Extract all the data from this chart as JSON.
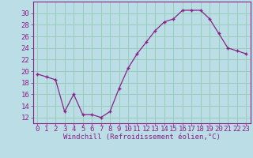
{
  "x": [
    0,
    1,
    2,
    3,
    4,
    5,
    6,
    7,
    8,
    9,
    10,
    11,
    12,
    13,
    14,
    15,
    16,
    17,
    18,
    19,
    20,
    21,
    22,
    23
  ],
  "y": [
    19.5,
    19.0,
    18.5,
    13.0,
    16.0,
    12.5,
    12.5,
    12.0,
    13.0,
    17.0,
    20.5,
    23.0,
    25.0,
    27.0,
    28.5,
    29.0,
    30.5,
    30.5,
    30.5,
    29.0,
    26.5,
    24.0,
    23.5,
    23.0
  ],
  "line_color": "#882288",
  "marker": "+",
  "bg_color": "#bbdde6",
  "grid_color": "#99ccbb",
  "xlabel": "Windchill (Refroidissement éolien,°C)",
  "xlim": [
    -0.5,
    23.5
  ],
  "ylim": [
    11,
    32
  ],
  "yticks": [
    12,
    14,
    16,
    18,
    20,
    22,
    24,
    26,
    28,
    30
  ],
  "xticks": [
    0,
    1,
    2,
    3,
    4,
    5,
    6,
    7,
    8,
    9,
    10,
    11,
    12,
    13,
    14,
    15,
    16,
    17,
    18,
    19,
    20,
    21,
    22,
    23
  ],
  "tick_color": "#882288",
  "label_color": "#882288",
  "spine_color": "#882288",
  "fontsize_xlabel": 6.5,
  "fontsize_ticks": 6.5
}
